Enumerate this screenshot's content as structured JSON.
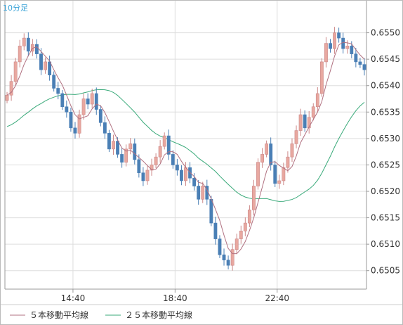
{
  "chart_data": {
    "type": "candlestick",
    "period_label": "10分足",
    "y_ticks": [
      "0.6505",
      "0.6510",
      "0.6515",
      "0.6520",
      "0.6525",
      "0.6530",
      "0.6535",
      "0.6540",
      "0.6545",
      "0.6550"
    ],
    "ylim": [
      0.65015,
      0.65562
    ],
    "x_ticks": [
      {
        "label": "14:40",
        "index": 16
      },
      {
        "label": "18:40",
        "index": 40
      },
      {
        "label": "22:40",
        "index": 64
      }
    ],
    "grid": true,
    "legend_position": "bottom-left",
    "series": [
      {
        "name": "5本移動平均線",
        "color": "#b07080"
      },
      {
        "name": "25本移動平均線",
        "color": "#3aaa7a"
      }
    ],
    "colors": {
      "up": "#e8a8a0",
      "up_edge": "#cc8888",
      "down": "#4a7fb5",
      "grid": "#dddddd",
      "axis": "#999999"
    },
    "closes": [
      0.65382,
      0.65408,
      0.65445,
      0.65475,
      0.6549,
      0.65465,
      0.65478,
      0.6546,
      0.6543,
      0.65445,
      0.6542,
      0.65395,
      0.65385,
      0.6536,
      0.6535,
      0.6532,
      0.6531,
      0.65345,
      0.65375,
      0.65365,
      0.65385,
      0.65355,
      0.6533,
      0.6531,
      0.6528,
      0.65295,
      0.6527,
      0.65255,
      0.6528,
      0.6529,
      0.6526,
      0.65235,
      0.6522,
      0.6524,
      0.6525,
      0.65265,
      0.65285,
      0.65305,
      0.6527,
      0.6525,
      0.6524,
      0.6522,
      0.65245,
      0.65225,
      0.6521,
      0.65185,
      0.6521,
      0.65185,
      0.6514,
      0.6511,
      0.6508,
      0.6507,
      0.6506,
      0.6509,
      0.6511,
      0.65125,
      0.6514,
      0.65165,
      0.6521,
      0.65255,
      0.6527,
      0.6529,
      0.6525,
      0.65215,
      0.6522,
      0.65245,
      0.65265,
      0.6529,
      0.65315,
      0.65345,
      0.6532,
      0.6534,
      0.6536,
      0.65385,
      0.65445,
      0.6548,
      0.6547,
      0.655,
      0.6549,
      0.6547,
      0.65475,
      0.6546,
      0.65445,
      0.6544,
      0.6543
    ]
  },
  "legend": {
    "ma5_label": "５本移動平均線",
    "ma25_label": "２５本移動平均線"
  }
}
